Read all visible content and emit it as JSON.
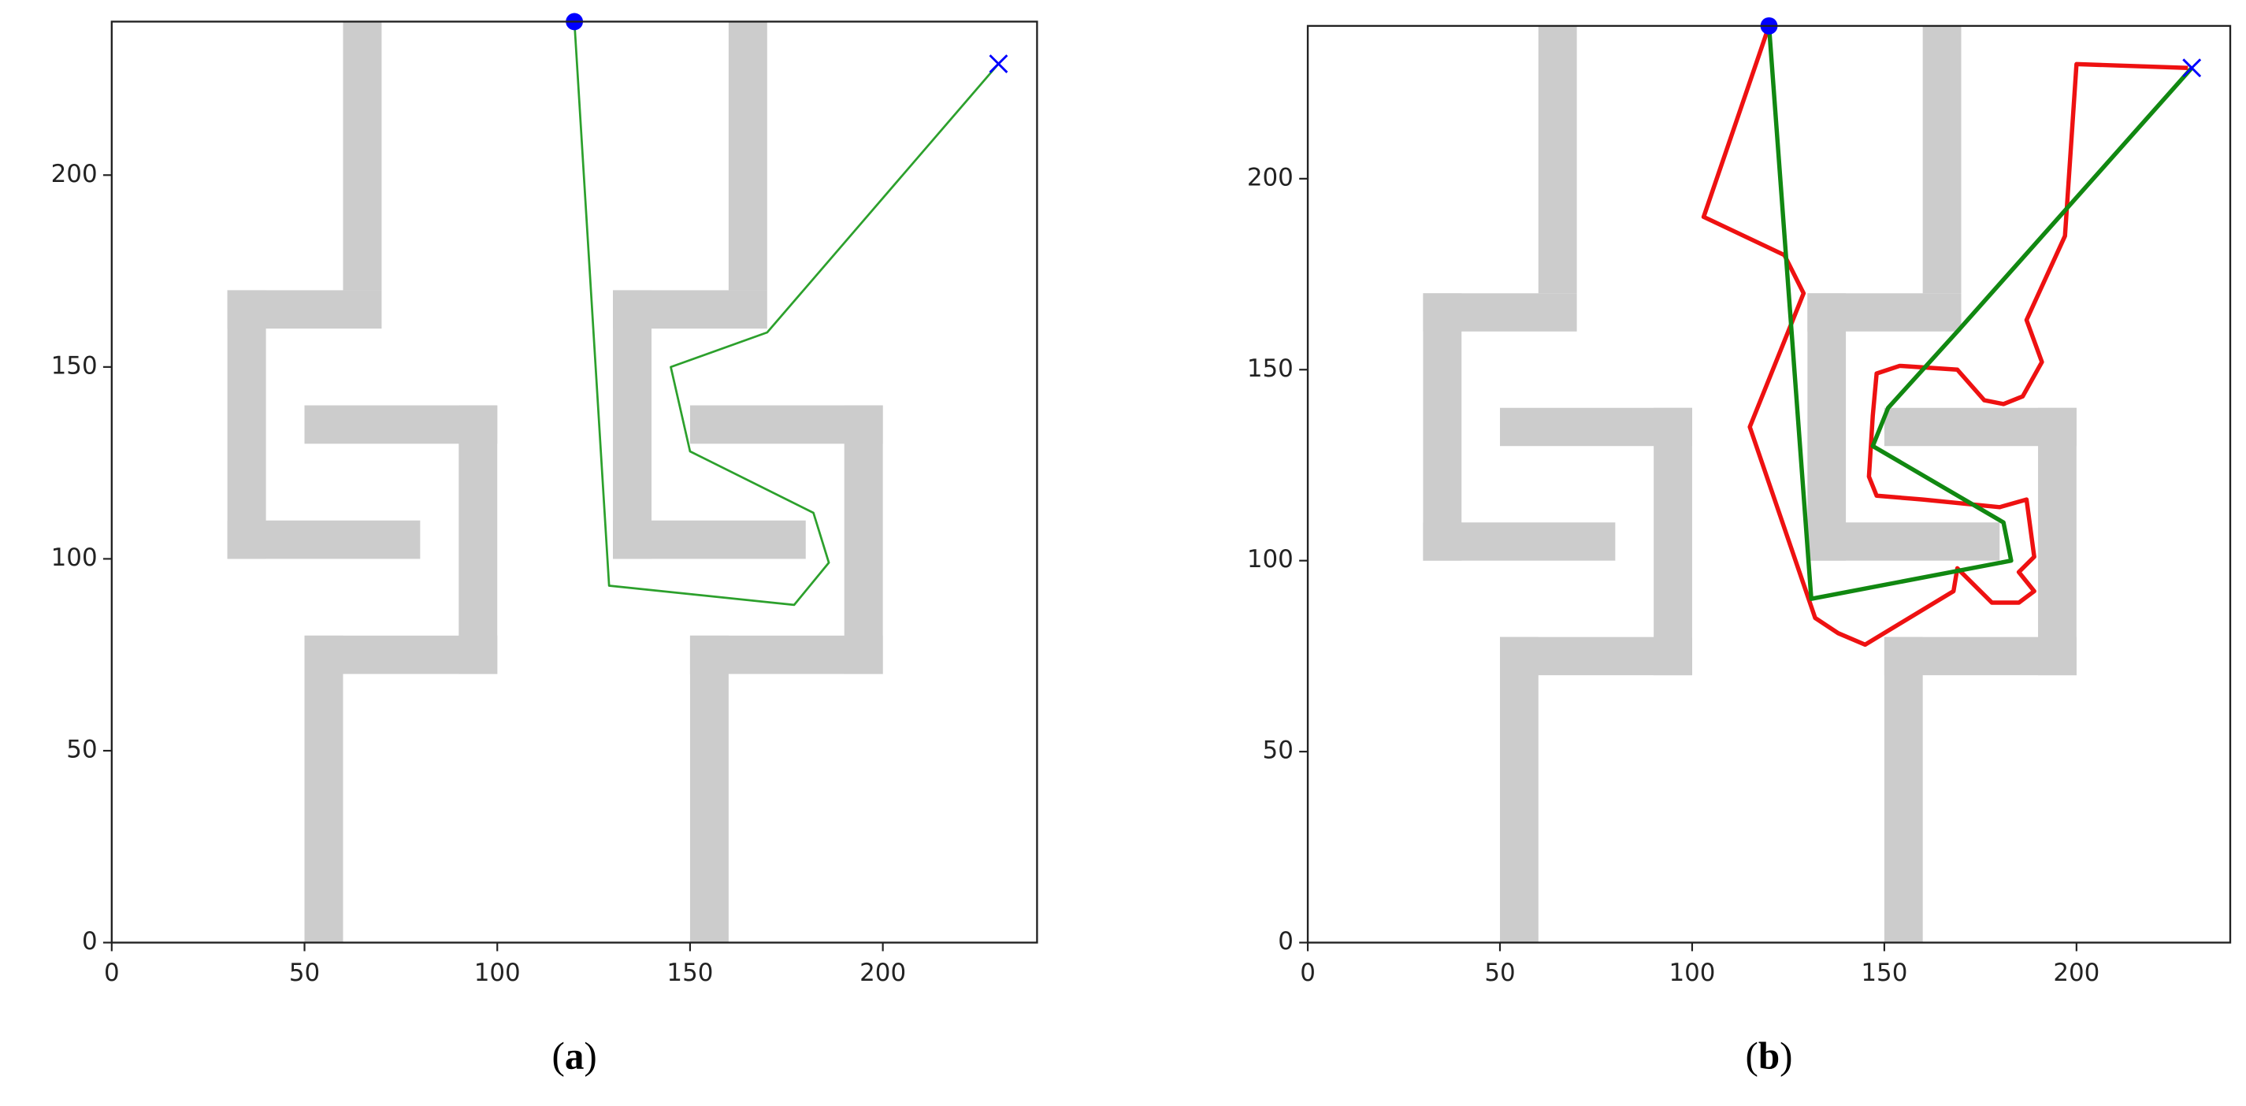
{
  "chart_data": [
    {
      "type": "line",
      "caption": [
        "(",
        "a",
        ")"
      ],
      "xlim": [
        0,
        240
      ],
      "ylim": [
        0,
        240
      ],
      "xticks": [
        0,
        50,
        100,
        150,
        200
      ],
      "yticks": [
        0,
        50,
        100,
        150,
        200
      ],
      "obstacle_color": "#cccccc",
      "obstacles": [
        [
          60,
          170,
          70,
          240
        ],
        [
          30,
          160,
          70,
          170
        ],
        [
          30,
          100,
          40,
          170
        ],
        [
          30,
          100,
          80,
          110
        ],
        [
          50,
          130,
          100,
          140
        ],
        [
          90,
          70,
          100,
          140
        ],
        [
          50,
          70,
          100,
          80
        ],
        [
          50,
          0,
          60,
          80
        ],
        [
          160,
          170,
          170,
          240
        ],
        [
          130,
          160,
          170,
          170
        ],
        [
          130,
          100,
          140,
          170
        ],
        [
          130,
          100,
          180,
          110
        ],
        [
          150,
          130,
          200,
          140
        ],
        [
          190,
          70,
          200,
          140
        ],
        [
          150,
          70,
          200,
          80
        ],
        [
          150,
          0,
          160,
          80
        ]
      ],
      "start": [
        120,
        240
      ],
      "goal": [
        230,
        229
      ],
      "marker_color": "#0000ff",
      "series": [
        {
          "color": "#2ca02c",
          "width": 1.5,
          "x": [
            120,
            129,
            177,
            186,
            182,
            150,
            145,
            170,
            230
          ],
          "values": [
            240,
            93,
            88,
            99,
            112,
            128,
            150,
            159,
            229
          ]
        }
      ]
    },
    {
      "type": "line",
      "caption": [
        "(",
        "b",
        ")"
      ],
      "xlim": [
        0,
        240
      ],
      "ylim": [
        0,
        240
      ],
      "xticks": [
        0,
        50,
        100,
        150,
        200
      ],
      "yticks": [
        0,
        50,
        100,
        150,
        200
      ],
      "obstacle_color": "#cccccc",
      "obstacles": [
        [
          60,
          170,
          70,
          240
        ],
        [
          30,
          160,
          70,
          170
        ],
        [
          30,
          100,
          40,
          170
        ],
        [
          30,
          100,
          80,
          110
        ],
        [
          50,
          130,
          100,
          140
        ],
        [
          90,
          70,
          100,
          140
        ],
        [
          50,
          70,
          100,
          80
        ],
        [
          50,
          0,
          60,
          80
        ],
        [
          160,
          170,
          170,
          240
        ],
        [
          130,
          160,
          170,
          170
        ],
        [
          130,
          100,
          140,
          170
        ],
        [
          130,
          100,
          180,
          110
        ],
        [
          150,
          130,
          200,
          140
        ],
        [
          190,
          70,
          200,
          140
        ],
        [
          150,
          70,
          200,
          80
        ],
        [
          150,
          0,
          160,
          80
        ]
      ],
      "start": [
        120,
        240
      ],
      "goal": [
        230,
        229
      ],
      "marker_color": "#0000ff",
      "series": [
        {
          "color": "#ee1111",
          "width": 3,
          "x": [
            120,
            103,
            124,
            129,
            115,
            132,
            138,
            145,
            168,
            169,
            174,
            178,
            185,
            189,
            185,
            189,
            187,
            180,
            160,
            148,
            146,
            147,
            148,
            154,
            169,
            176,
            181,
            186,
            191,
            187,
            197,
            200,
            229
          ],
          "values": [
            240,
            190,
            180,
            170,
            135,
            85,
            81,
            78,
            92,
            98,
            93,
            89,
            89,
            92,
            97,
            101,
            116,
            114,
            116,
            117,
            122,
            138,
            149,
            151,
            150,
            142,
            141,
            143,
            152,
            163,
            185,
            230,
            229
          ]
        },
        {
          "color": "#118811",
          "width": 3,
          "x": [
            120,
            131,
            183,
            181,
            147,
            151,
            169,
            230
          ],
          "values": [
            240,
            90,
            100,
            110,
            130,
            140,
            160,
            229
          ]
        }
      ]
    }
  ]
}
